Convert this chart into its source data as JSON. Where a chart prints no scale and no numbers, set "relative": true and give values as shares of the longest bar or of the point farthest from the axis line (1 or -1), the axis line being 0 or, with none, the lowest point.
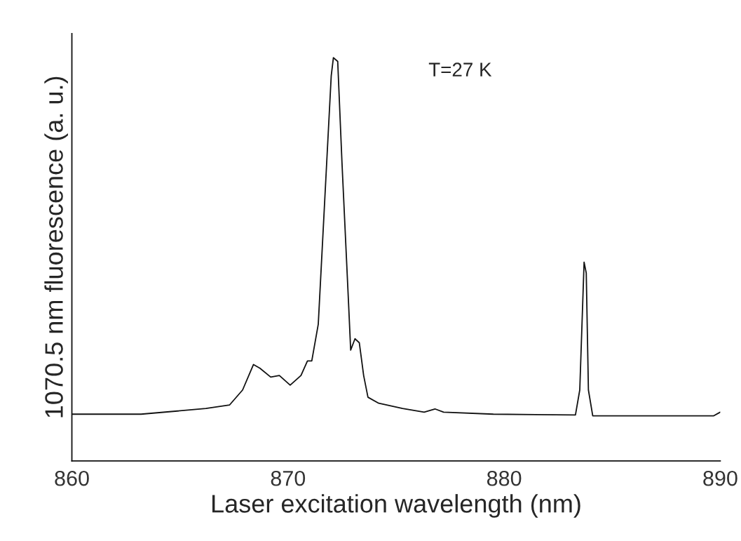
{
  "chart_data": {
    "type": "line",
    "relative": true,
    "xlabel": "Laser excitation wavelength (nm)",
    "ylabel": "1070.5 nm fluorescence (a. u.)",
    "annotations": [
      "T=27 K"
    ],
    "xlim": [
      860,
      890
    ],
    "xticks": [
      860,
      870,
      880,
      890
    ],
    "tick_labels": "x",
    "grid": false,
    "legend": false,
    "marker": "none",
    "line_style": "solid",
    "series": [
      {
        "color": "#111111",
        "x": [
          860.0,
          863.2,
          866.2,
          867.3,
          867.9,
          868.4,
          868.7,
          869.2,
          869.6,
          870.1,
          870.6,
          870.9,
          871.1,
          871.4,
          871.7,
          872.0,
          872.1,
          872.3,
          872.5,
          872.8,
          872.9,
          873.1,
          873.3,
          873.5,
          873.7,
          874.2,
          875.3,
          876.3,
          876.8,
          877.2,
          879.5,
          883.3,
          883.5,
          883.7,
          883.8,
          883.9,
          884.1,
          886.1,
          889.7,
          890.0
        ],
        "values": [
          0.116,
          0.116,
          0.13,
          0.139,
          0.176,
          0.239,
          0.23,
          0.208,
          0.212,
          0.188,
          0.212,
          0.248,
          0.248,
          0.339,
          0.647,
          0.955,
          1.0,
          0.991,
          0.737,
          0.393,
          0.275,
          0.303,
          0.293,
          0.212,
          0.158,
          0.143,
          0.13,
          0.121,
          0.129,
          0.121,
          0.116,
          0.114,
          0.176,
          0.493,
          0.466,
          0.176,
          0.112,
          0.112,
          0.112,
          0.121
        ]
      }
    ]
  }
}
